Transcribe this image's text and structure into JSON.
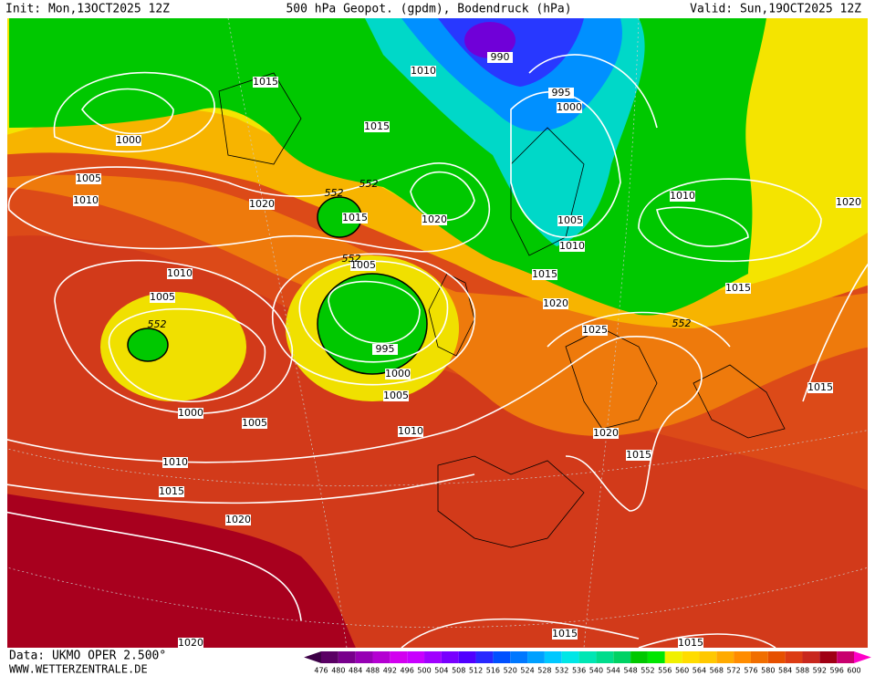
{
  "header": {
    "init": "Init: Mon,13OCT2025 12Z",
    "title": "500 hPa Geopot. (gpdm), Bodendruck (hPa)",
    "valid": "Valid: Sun,19OCT2025 12Z"
  },
  "footer": {
    "source": "Data: UKMO OPER 2.500°",
    "website": "WWW.WETTERZENTRALE.DE"
  },
  "isobar_labels": [
    990,
    1010,
    1015,
    995,
    1000,
    1000,
    1015,
    1005,
    1010,
    1020,
    1015,
    1020,
    1010,
    1005,
    1020,
    1010,
    1015,
    1010,
    1005,
    1005,
    1015,
    1020,
    1025,
    995,
    1000,
    1005,
    1015,
    1000,
    1005,
    1010,
    1020,
    1015,
    1010,
    1015,
    1020,
    1015,
    1015,
    1020
  ],
  "height_labels": [
    552,
    552,
    552,
    552,
    552
  ],
  "color_scale": {
    "levels": [
      476,
      480,
      484,
      488,
      492,
      496,
      500,
      504,
      508,
      512,
      516,
      520,
      524,
      528,
      532,
      536,
      540,
      544,
      548,
      552,
      556,
      560,
      564,
      568,
      572,
      576,
      580,
      584,
      588,
      592,
      596,
      600
    ],
    "colors": [
      "#3c0046",
      "#5a0064",
      "#78008c",
      "#9600b4",
      "#b400d2",
      "#d200f0",
      "#c800ff",
      "#a000ff",
      "#7800ff",
      "#5000ff",
      "#2828ff",
      "#0050ff",
      "#0078ff",
      "#00a0ff",
      "#00c8ff",
      "#00e6e6",
      "#00e6b4",
      "#00dc8c",
      "#00d264",
      "#00c800",
      "#00e600",
      "#f0f000",
      "#ffdc00",
      "#ffc800",
      "#ffaa00",
      "#ff8c00",
      "#f06e00",
      "#e65000",
      "#dc3c14",
      "#c8281e",
      "#a00014",
      "#c8006e",
      "#ff00c8"
    ]
  }
}
